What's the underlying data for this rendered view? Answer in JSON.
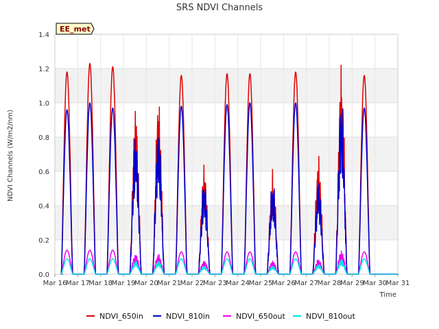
{
  "chart_data": {
    "type": "line",
    "title": "SRS NDVI Channels",
    "xlabel": "Time",
    "ylabel": "NDVI Channels (W/m2/nm)",
    "site_label": "EE_met",
    "ylim": [
      0,
      1.4
    ],
    "yticks": [
      "0.0",
      "0.2",
      "0.4",
      "0.6",
      "0.8",
      "1.0",
      "1.2",
      "1.4"
    ],
    "xlim_days": [
      16,
      31
    ],
    "xticks": [
      "Mar 16",
      "Mar 17",
      "Mar 18",
      "Mar 19",
      "Mar 20",
      "Mar 21",
      "Mar 22",
      "Mar 23",
      "Mar 24",
      "Mar 25",
      "Mar 26",
      "Mar 27",
      "Mar 28",
      "Mar 29",
      "Mar 30",
      "Mar 31"
    ],
    "grid": true,
    "legend_position": "bottom",
    "daily_peaks": {
      "days": [
        "Mar 16",
        "Mar 17",
        "Mar 18",
        "Mar 19",
        "Mar 20",
        "Mar 21",
        "Mar 22",
        "Mar 23",
        "Mar 24",
        "Mar 25",
        "Mar 26",
        "Mar 27",
        "Mar 28",
        "Mar 29",
        "Mar 30"
      ],
      "series": [
        {
          "name": "NDVI_650in",
          "color": "#dd0000",
          "values": [
            1.18,
            1.23,
            1.21,
            0.99,
            1.05,
            1.16,
            0.65,
            1.17,
            1.17,
            0.62,
            1.18,
            0.7,
            1.25,
            1.16,
            0.0
          ]
        },
        {
          "name": "NDVI_810in",
          "color": "#0000cc",
          "values": [
            0.96,
            1.0,
            0.97,
            0.86,
            0.89,
            0.98,
            0.57,
            0.99,
            1.0,
            0.56,
            1.0,
            0.56,
            1.07,
            0.97,
            0.0
          ]
        },
        {
          "name": "NDVI_650out",
          "color": "#ee00ee",
          "values": [
            0.14,
            0.14,
            0.14,
            0.12,
            0.12,
            0.13,
            0.08,
            0.13,
            0.13,
            0.08,
            0.13,
            0.09,
            0.14,
            0.13,
            0.0
          ]
        },
        {
          "name": "NDVI_810out",
          "color": "#00e5e5",
          "values": [
            0.09,
            0.09,
            0.09,
            0.08,
            0.08,
            0.09,
            0.05,
            0.09,
            0.09,
            0.05,
            0.09,
            0.06,
            0.09,
            0.09,
            0.0
          ]
        }
      ]
    }
  }
}
